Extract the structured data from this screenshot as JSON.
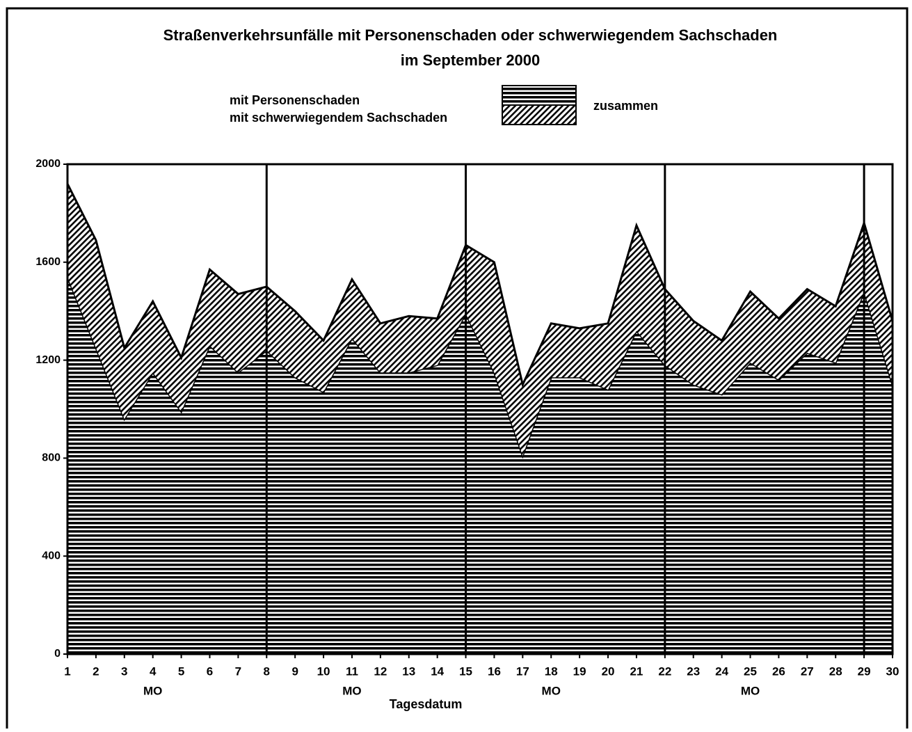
{
  "chart_data": {
    "type": "stacked-area",
    "title": "Straßenverkehrsunfälle mit Personenschaden oder schwerwiegendem Sachschaden",
    "subtitle": "im September 2000",
    "legend_group_label": "zusammen",
    "x_label": "Tagesdatum",
    "x": [
      1,
      2,
      3,
      4,
      5,
      6,
      7,
      8,
      9,
      10,
      11,
      12,
      13,
      14,
      15,
      16,
      17,
      18,
      19,
      20,
      21,
      22,
      23,
      24,
      25,
      26,
      27,
      28,
      29,
      30
    ],
    "xlim": [
      1,
      30
    ],
    "xticks": [
      1,
      2,
      3,
      4,
      5,
      6,
      7,
      8,
      9,
      10,
      11,
      12,
      13,
      14,
      15,
      16,
      17,
      18,
      19,
      20,
      21,
      22,
      23,
      24,
      25,
      26,
      27,
      28,
      29,
      30
    ],
    "ylim": [
      0,
      2000
    ],
    "yticks": [
      0,
      400,
      800,
      1200,
      1600,
      2000
    ],
    "week_lines": [
      8,
      15,
      22,
      29
    ],
    "annotations": [
      {
        "text": "MO",
        "x": 4
      },
      {
        "text": "MO",
        "x": 11
      },
      {
        "text": "MO",
        "x": 18
      },
      {
        "text": "MO",
        "x": 25
      }
    ],
    "series": [
      {
        "name": "mit Personenschaden",
        "color": "#000000",
        "pattern": "horizontal",
        "values": [
          1540,
          1250,
          960,
          1150,
          990,
          1260,
          1150,
          1240,
          1130,
          1070,
          1290,
          1150,
          1150,
          1180,
          1390,
          1150,
          810,
          1130,
          1130,
          1080,
          1320,
          1180,
          1100,
          1060,
          1190,
          1120,
          1230,
          1190,
          1480,
          1100
        ]
      },
      {
        "name": "mit schwerwiegendem Sachschaden",
        "color": "#000000",
        "pattern": "diagonal",
        "values": [
          380,
          440,
          290,
          290,
          220,
          310,
          320,
          260,
          270,
          210,
          240,
          200,
          230,
          190,
          280,
          450,
          290,
          220,
          200,
          270,
          430,
          310,
          260,
          220,
          290,
          250,
          260,
          230,
          280,
          260
        ]
      }
    ]
  }
}
